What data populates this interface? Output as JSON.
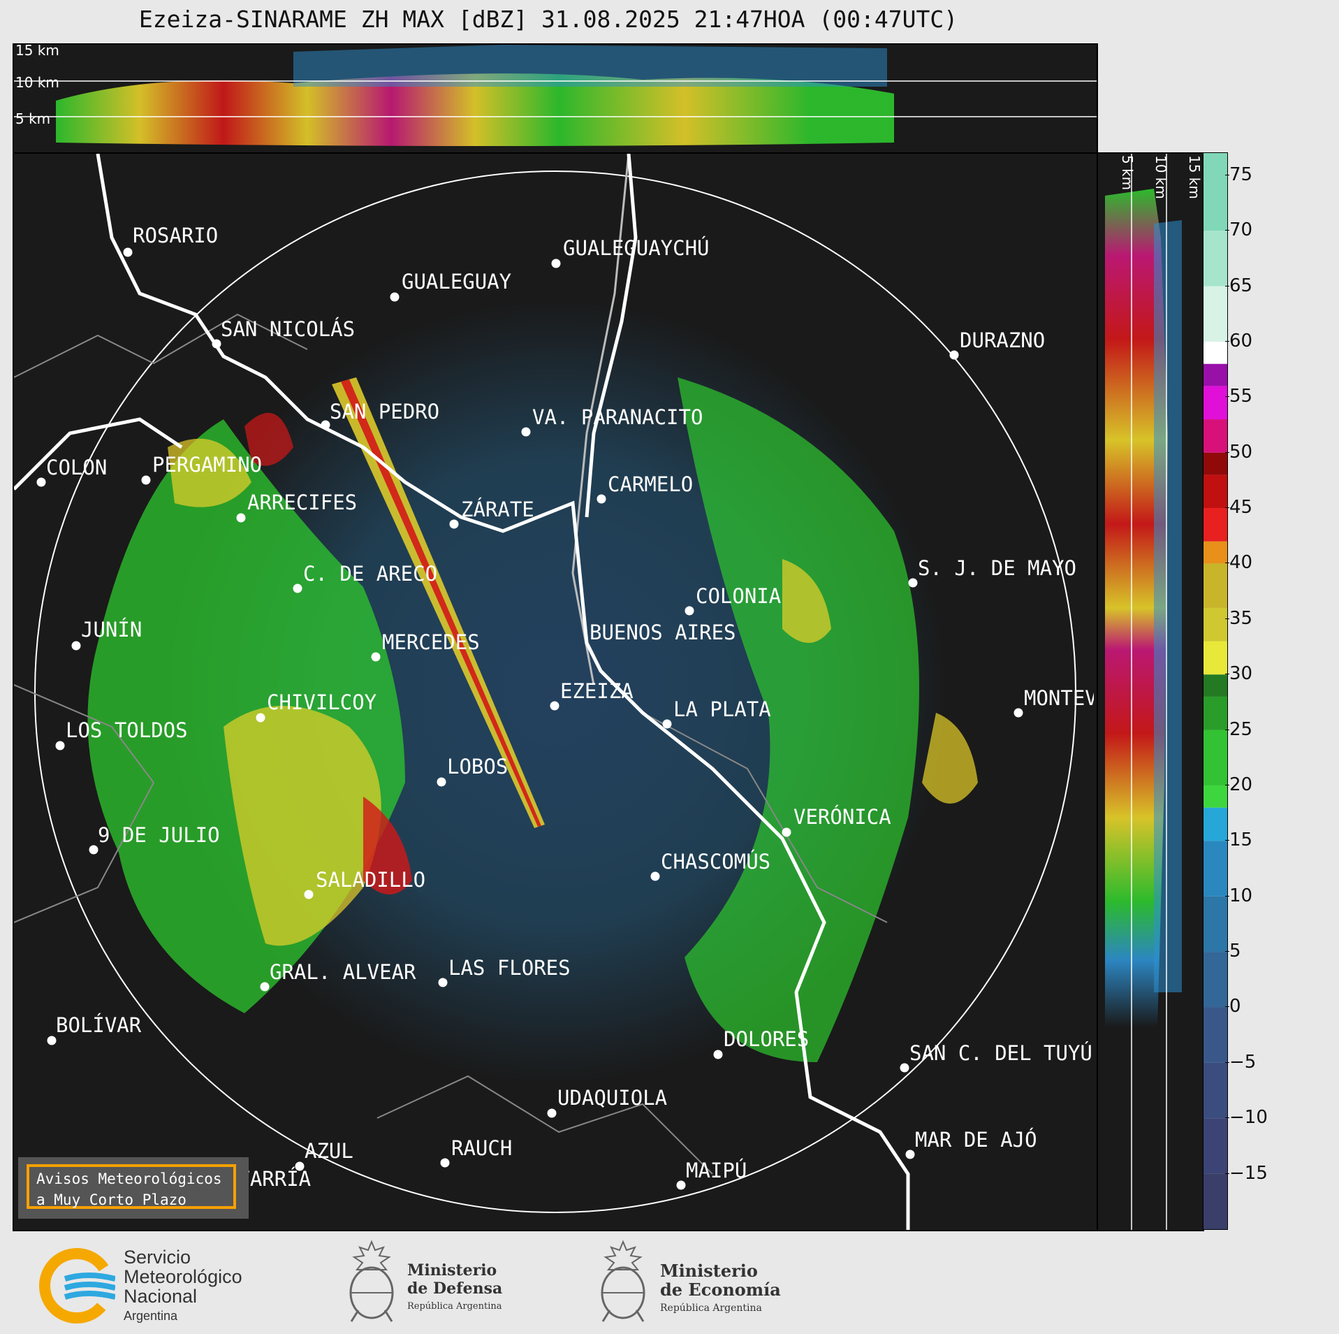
{
  "title": "Ezeiza-SINARAME ZH MAX [dBZ] 31.08.2025 21:47HOA (00:47UTC)",
  "altitude_labels_top": [
    "15 km",
    "10 km",
    "5 km"
  ],
  "altitude_labels_side": [
    "5 km",
    "10 km",
    "15 km"
  ],
  "cities": [
    {
      "name": "ROSARIO"
    },
    {
      "name": "GUALEGUAYCHÚ"
    },
    {
      "name": "GUALEGUAY"
    },
    {
      "name": "SAN NICOLÁS"
    },
    {
      "name": "DURAZNO"
    },
    {
      "name": "SAN PEDRO"
    },
    {
      "name": "VA. PARANACITO"
    },
    {
      "name": "COLON"
    },
    {
      "name": "PERGAMINO"
    },
    {
      "name": "CARMELO"
    },
    {
      "name": "ARRECIFES"
    },
    {
      "name": "ZÁRATE"
    },
    {
      "name": "S. J. DE MAYO"
    },
    {
      "name": "C. DE ARECO"
    },
    {
      "name": "COLONIA"
    },
    {
      "name": "JUNÍN"
    },
    {
      "name": "MERCEDES"
    },
    {
      "name": "BUENOS AIRES"
    },
    {
      "name": "EZEIZA"
    },
    {
      "name": "MONTEVIDEO"
    },
    {
      "name": "CHIVILCOY"
    },
    {
      "name": "LA PLATA"
    },
    {
      "name": "LOS TOLDOS"
    },
    {
      "name": "LOBOS"
    },
    {
      "name": "VERÓNICA"
    },
    {
      "name": "9 DE JULIO"
    },
    {
      "name": "CHASCOMÚS"
    },
    {
      "name": "SALADILLO"
    },
    {
      "name": "GRAL. ALVEAR"
    },
    {
      "name": "LAS FLORES"
    },
    {
      "name": "BOLÍVAR"
    },
    {
      "name": "DOLORES"
    },
    {
      "name": "SAN C. DEL TUYÚ"
    },
    {
      "name": "UDAQUIOLA"
    },
    {
      "name": "MAR DE AJÓ"
    },
    {
      "name": "AZUL"
    },
    {
      "name": "RAUCH"
    },
    {
      "name": "OLAVARRÍA"
    },
    {
      "name": "MAIPÚ"
    }
  ],
  "colorbar": {
    "ticks": [
      "75",
      "70",
      "65",
      "60",
      "55",
      "50",
      "45",
      "40",
      "35",
      "30",
      "25",
      "20",
      "15",
      "10",
      "5",
      "0",
      "−5",
      "−10",
      "−15"
    ],
    "range": [
      -20,
      77
    ]
  },
  "notice": {
    "line1": "Avisos Meteorológicos",
    "line2": "a Muy Corto Plazo"
  },
  "logos": {
    "smn_line1": "Servicio",
    "smn_line2": "Meteorológico",
    "smn_line3": "Nacional",
    "smn_line4": "Argentina",
    "defensa_line1": "Ministerio",
    "defensa_line2": "de Defensa",
    "defensa_line3": "República Argentina",
    "economia_line1": "Ministerio",
    "economia_line2": "de Economía",
    "economia_line3": "República Argentina"
  }
}
